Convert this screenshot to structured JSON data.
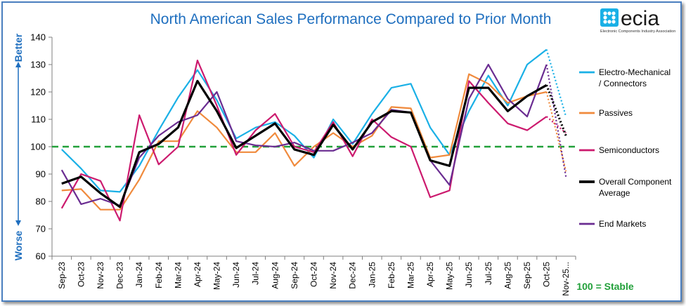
{
  "logo": {
    "name": "ecia",
    "subtitle": "Electronic Components Industry Association"
  },
  "labels": {
    "better": "Better",
    "worse": "Worse",
    "stable_note": "100 = Stable"
  },
  "colors": {
    "electro": "#1ab0e6",
    "passives": "#f08a3c",
    "semis": "#cc1a6e",
    "overall": "#000000",
    "endmarkets": "#6a2c91",
    "stable_line": "#22a03a",
    "title": "#1f6fbf"
  },
  "chart_data": {
    "type": "line",
    "title": "North American Sales Performance Compared to Prior Month",
    "categories": [
      "Sep-23",
      "Oct-23",
      "Nov-23",
      "Dec-23",
      "Jan-24",
      "Feb-24",
      "Mar-24",
      "Apr-24",
      "May-24",
      "Jun-24",
      "Jul-24",
      "Aug-24",
      "Sep-24",
      "Oct-24",
      "Nov-24",
      "Dec-24",
      "Jan-25",
      "Feb-25",
      "Mar-25",
      "Apr-25",
      "May-25",
      "Jun-25",
      "Jul-25",
      "Aug-25",
      "Sep-25",
      "Oct-25",
      "Nov-25..."
    ],
    "ylim": [
      60,
      140
    ],
    "yticks": [
      60,
      70,
      80,
      90,
      100,
      110,
      120,
      130,
      140
    ],
    "reference_line": 100,
    "series": [
      {
        "name": "Electro-Mechanical / Connectors",
        "legend_lines": [
          "Electro-Mechanical",
          "/ Connectors"
        ],
        "color_key": "electro",
        "width": 2.2,
        "values": [
          99,
          92,
          84,
          83.5,
          93,
          106,
          118,
          128,
          117,
          103,
          107,
          109,
          104,
          96,
          110,
          101,
          112,
          121.5,
          123,
          107,
          97,
          113,
          126,
          115,
          130,
          135.5,
          111
        ]
      },
      {
        "name": "Passives",
        "legend_lines": [
          "Passives"
        ],
        "color_key": "passives",
        "width": 2.2,
        "values": [
          84,
          84.5,
          77,
          77,
          88,
          102,
          102,
          113,
          107,
          98,
          98,
          105,
          93,
          100,
          105,
          100,
          104,
          114.5,
          114,
          96,
          97,
          126.5,
          123,
          116,
          118.5,
          120,
          91
        ]
      },
      {
        "name": "Semiconductors",
        "legend_lines": [
          "Semiconductors"
        ],
        "color_key": "semis",
        "width": 2.2,
        "values": [
          77.5,
          90,
          87.5,
          73,
          111.5,
          93.5,
          100,
          131.5,
          115,
          97,
          106,
          112,
          100,
          98,
          109,
          96.5,
          110,
          103.5,
          100,
          81.5,
          84,
          124,
          116,
          108.5,
          106,
          111,
          105
        ]
      },
      {
        "name": "Overall Component Average",
        "legend_lines": [
          "Overall Component",
          "Average"
        ],
        "color_key": "overall",
        "width": 3.2,
        "values": [
          86.5,
          89,
          83,
          78,
          98,
          101,
          107,
          124,
          113,
          99.5,
          104,
          108.5,
          99,
          97,
          108,
          99,
          109,
          113,
          112.5,
          95,
          93,
          121.5,
          121.5,
          113,
          118.5,
          122.5,
          104
        ]
      },
      {
        "name": "End Markets",
        "legend_lines": [
          "End Markets"
        ],
        "color_key": "endmarkets",
        "width": 2.2,
        "values": [
          91.5,
          79,
          81,
          78.5,
          96,
          104,
          109,
          111.5,
          120,
          102,
          100.5,
          100,
          101.5,
          98.5,
          98.5,
          101.5,
          105,
          113.5,
          112.5,
          95,
          86,
          117.5,
          130,
          117.5,
          111,
          130,
          89
        ]
      }
    ]
  }
}
